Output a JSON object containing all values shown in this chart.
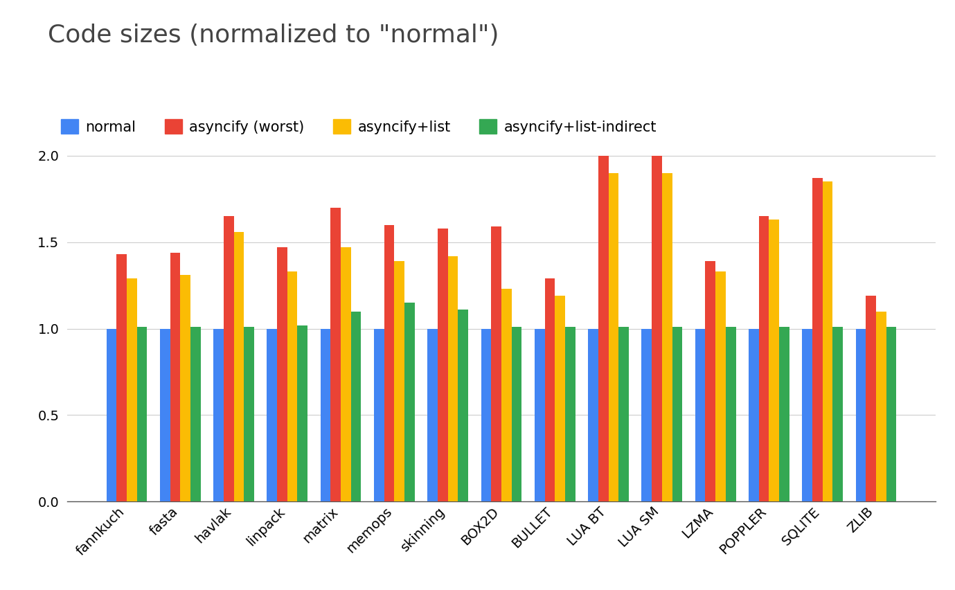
{
  "categories": [
    "fannkuch",
    "fasta",
    "havlak",
    "linpack",
    "matrix",
    "memops",
    "skinning",
    "BOX2D",
    "BULLET",
    "LUA BT",
    "LUA SM",
    "LZMA",
    "POPPLER",
    "SQLITE",
    "ZLIB"
  ],
  "series": {
    "normal": [
      1.0,
      1.0,
      1.0,
      1.0,
      1.0,
      1.0,
      1.0,
      1.0,
      1.0,
      1.0,
      1.0,
      1.0,
      1.0,
      1.0,
      1.0
    ],
    "asyncify_worst": [
      1.43,
      1.44,
      1.65,
      1.47,
      1.7,
      1.6,
      1.58,
      1.59,
      1.29,
      2.0,
      2.0,
      1.39,
      1.65,
      1.87,
      1.19
    ],
    "asyncify_list": [
      1.29,
      1.31,
      1.56,
      1.33,
      1.47,
      1.39,
      1.42,
      1.23,
      1.19,
      1.9,
      1.9,
      1.33,
      1.63,
      1.85,
      1.1
    ],
    "asyncify_list_indirect": [
      1.01,
      1.01,
      1.01,
      1.02,
      1.1,
      1.15,
      1.11,
      1.01,
      1.01,
      1.01,
      1.01,
      1.01,
      1.01,
      1.01,
      1.01
    ]
  },
  "colors": {
    "normal": "#4285F4",
    "asyncify_worst": "#EA4335",
    "asyncify_list": "#FBBC04",
    "asyncify_list_indirect": "#34A853"
  },
  "legend_labels": [
    "normal",
    "asyncify (worst)",
    "asyncify+list",
    "asyncify+list-indirect"
  ],
  "title": "Code sizes (normalized to \"normal\")",
  "ylim": [
    0,
    2.15
  ],
  "yticks": [
    0,
    0.5,
    1,
    1.5,
    2
  ],
  "background_color": "#ffffff",
  "grid_color": "#cccccc",
  "title_fontsize": 26,
  "legend_fontsize": 15,
  "tick_fontsize": 14,
  "bar_width": 0.19
}
